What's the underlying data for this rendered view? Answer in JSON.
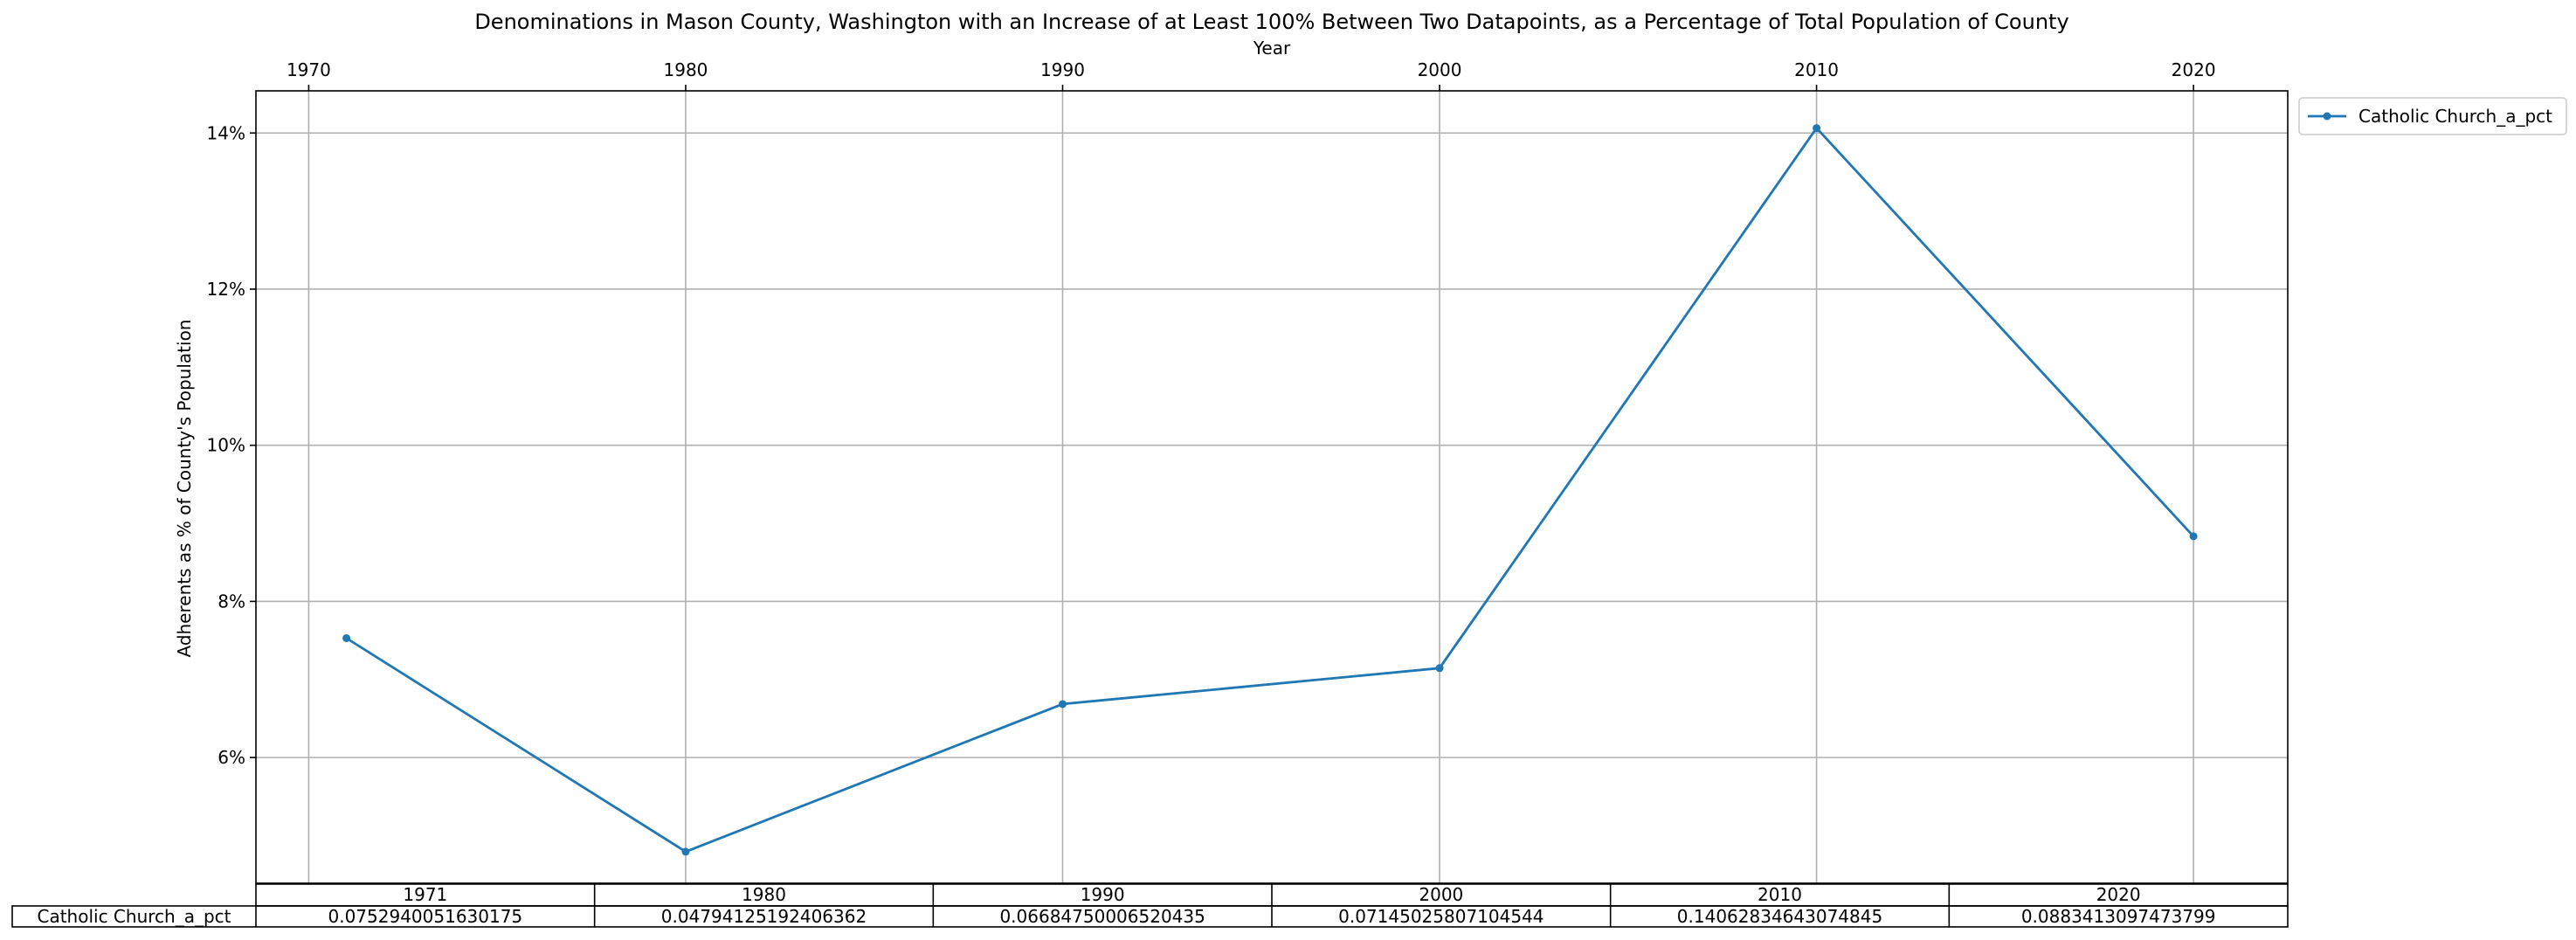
{
  "chart_data": {
    "type": "line",
    "title": "Denominations in Mason County, Washington with an Increase of at Least 100% Between Two Datapoints, as a Percentage of Total Population of County",
    "xlabel": "Year",
    "ylabel": "Adherents as % of County's Population",
    "x_ticks": [
      "1970",
      "1980",
      "1990",
      "2000",
      "2010",
      "2020"
    ],
    "x_tick_values": [
      1970,
      1980,
      1990,
      2000,
      2010,
      2020
    ],
    "y_ticks": [
      "6%",
      "8%",
      "10%",
      "12%",
      "14%"
    ],
    "y_tick_values": [
      0.06,
      0.08,
      0.1,
      0.12,
      0.14
    ],
    "xlim": [
      1968.6,
      2022.5
    ],
    "ylim": [
      0.0439,
      0.1454
    ],
    "grid": true,
    "legend_position": "outside-top-right",
    "series": [
      {
        "name": "Catholic Church_a_pct",
        "color": "#1f77b4",
        "x": [
          1971,
          1980,
          1990,
          2000,
          2010,
          2020
        ],
        "y": [
          0.0752940051630175,
          0.0479412519240636,
          0.0668475000652044,
          0.0714502580710454,
          0.140628346430748,
          0.0883413097473799
        ]
      }
    ],
    "table": {
      "columns": [
        "1971",
        "1980",
        "1990",
        "2000",
        "2010",
        "2020"
      ],
      "rows": [
        {
          "label": "Catholic Church_a_pct",
          "cells": [
            "0.0752940051630175",
            "0.04794125192406362",
            "0.06684750006520435",
            "0.07145025807104544",
            "0.14062834643074845",
            "0.0883413097473799"
          ]
        }
      ]
    }
  }
}
